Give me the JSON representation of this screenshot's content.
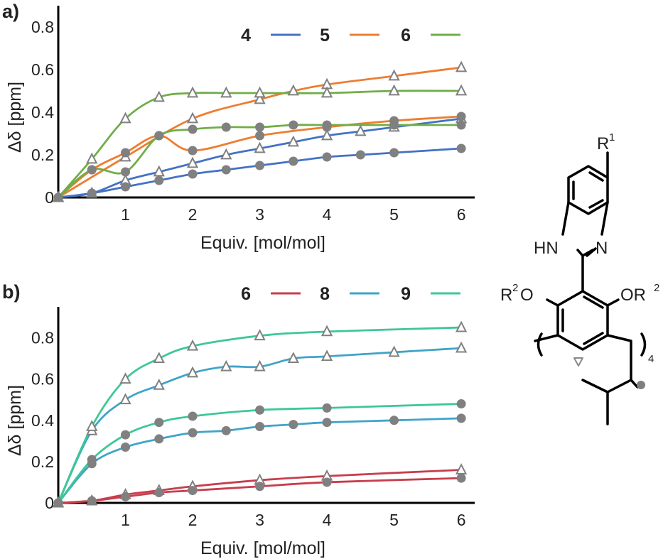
{
  "chart_data": [
    {
      "panel": "a)",
      "type": "line",
      "xlabel": "Equiv. [mol/mol]",
      "ylabel": "Δδ [ppm]",
      "xlim": [
        0,
        6.2
      ],
      "ylim": [
        0,
        0.9
      ],
      "x_ticks": [
        "1",
        "2",
        "3",
        "4",
        "5",
        "6"
      ],
      "y_ticks": [
        "0",
        "0.2",
        "0.4",
        "0.6",
        "0.8"
      ],
      "legend": [
        {
          "label": "4",
          "color": "#4472c4"
        },
        {
          "label": "5",
          "color": "#ed7d31"
        },
        {
          "label": "6",
          "color": "#70ad47"
        }
      ],
      "series": [
        {
          "legend": "4",
          "marker": "triangle",
          "color": "#4472c4",
          "x": [
            0,
            0.5,
            1,
            1.5,
            2,
            2.5,
            3,
            3.5,
            4,
            4.5,
            5,
            6
          ],
          "y": [
            0,
            0.02,
            0.08,
            0.12,
            0.16,
            0.2,
            0.23,
            0.26,
            0.29,
            0.31,
            0.33,
            0.37
          ]
        },
        {
          "legend": "4",
          "marker": "circle",
          "color": "#4472c4",
          "x": [
            0,
            0.5,
            1,
            1.5,
            2,
            2.5,
            3,
            3.5,
            4,
            4.5,
            5,
            6
          ],
          "y": [
            0,
            0.02,
            0.05,
            0.08,
            0.11,
            0.13,
            0.15,
            0.17,
            0.19,
            0.2,
            0.21,
            0.23
          ]
        },
        {
          "legend": "5",
          "marker": "triangle",
          "color": "#ed7d31",
          "x": [
            0,
            1,
            2,
            3,
            3.5,
            4,
            5,
            6
          ],
          "y": [
            0,
            0.19,
            0.37,
            0.46,
            0.5,
            0.53,
            0.57,
            0.61
          ]
        },
        {
          "legend": "5",
          "marker": "circle",
          "color": "#ed7d31",
          "x": [
            0,
            0.5,
            1,
            1.5,
            2,
            3,
            4,
            5,
            6
          ],
          "y": [
            0,
            0.13,
            0.21,
            0.29,
            0.22,
            0.29,
            0.33,
            0.36,
            0.38
          ]
        },
        {
          "legend": "6",
          "marker": "triangle",
          "color": "#70ad47",
          "x": [
            0,
            0.5,
            1,
            1.5,
            2,
            2.5,
            3,
            4,
            5,
            6
          ],
          "y": [
            0,
            0.18,
            0.37,
            0.47,
            0.49,
            0.49,
            0.49,
            0.49,
            0.5,
            0.5
          ]
        },
        {
          "legend": "6",
          "marker": "circle",
          "color": "#70ad47",
          "x": [
            0,
            0.5,
            1,
            1.5,
            2,
            2.5,
            3,
            3.5,
            4,
            5,
            6
          ],
          "y": [
            0,
            0.13,
            0.12,
            0.29,
            0.32,
            0.33,
            0.33,
            0.34,
            0.34,
            0.34,
            0.34
          ]
        }
      ]
    },
    {
      "panel": "b)",
      "type": "line",
      "xlabel": "Equiv. [mol/mol]",
      "ylabel": "Δδ [ppm]",
      "xlim": [
        0,
        6.2
      ],
      "ylim": [
        0,
        0.95
      ],
      "x_ticks": [
        "1",
        "2",
        "3",
        "4",
        "5",
        "6"
      ],
      "y_ticks": [
        "0",
        "0.2",
        "0.4",
        "0.6",
        "0.8"
      ],
      "legend": [
        {
          "label": "6",
          "color": "#c83e4d"
        },
        {
          "label": "8",
          "color": "#3fa4c9"
        },
        {
          "label": "9",
          "color": "#3ec796"
        }
      ],
      "series": [
        {
          "legend": "6",
          "marker": "triangle",
          "color": "#c83e4d",
          "x": [
            0,
            0.5,
            1,
            1.5,
            2,
            3,
            4,
            6
          ],
          "y": [
            0,
            0.01,
            0.04,
            0.06,
            0.08,
            0.11,
            0.13,
            0.16
          ]
        },
        {
          "legend": "6",
          "marker": "circle",
          "color": "#c83e4d",
          "x": [
            0,
            0.5,
            1,
            1.5,
            2,
            3,
            4,
            6
          ],
          "y": [
            0,
            0.01,
            0.03,
            0.05,
            0.06,
            0.08,
            0.1,
            0.12
          ]
        },
        {
          "legend": "8",
          "marker": "triangle",
          "color": "#3fa4c9",
          "x": [
            0,
            0.5,
            1,
            1.5,
            2,
            2.5,
            3,
            3.5,
            4,
            5,
            6
          ],
          "y": [
            0,
            0.35,
            0.5,
            0.57,
            0.63,
            0.66,
            0.66,
            0.7,
            0.71,
            0.73,
            0.75
          ]
        },
        {
          "legend": "8",
          "marker": "circle",
          "color": "#3fa4c9",
          "x": [
            0,
            0.5,
            1,
            1.5,
            2,
            2.5,
            3,
            3.5,
            4,
            5,
            6
          ],
          "y": [
            0,
            0.19,
            0.27,
            0.31,
            0.34,
            0.35,
            0.37,
            0.38,
            0.39,
            0.4,
            0.41
          ]
        },
        {
          "legend": "9",
          "marker": "triangle",
          "color": "#3ec796",
          "x": [
            0,
            0.5,
            1,
            1.5,
            2,
            3,
            4,
            6
          ],
          "y": [
            0,
            0.37,
            0.6,
            0.7,
            0.76,
            0.81,
            0.83,
            0.85
          ]
        },
        {
          "legend": "9",
          "marker": "circle",
          "color": "#3ec796",
          "x": [
            0,
            0.5,
            1,
            1.5,
            2,
            3,
            4,
            6
          ],
          "y": [
            0,
            0.21,
            0.33,
            0.39,
            0.42,
            0.45,
            0.46,
            0.48
          ]
        }
      ]
    }
  ],
  "structure": {
    "substituents": {
      "r1": "R",
      "r1_sup": "1",
      "hn": "HN",
      "n": "N",
      "left_group_r": "R",
      "left_group_sup": "2",
      "left_group_o": "O",
      "right_group_o": "OR",
      "right_group_sup": "2",
      "repeat_count": "4"
    },
    "markers": {
      "triangle": "triangle-marker",
      "circle": "circle-marker"
    }
  },
  "colors": {
    "axis": "#000000",
    "marker": "#808080"
  }
}
